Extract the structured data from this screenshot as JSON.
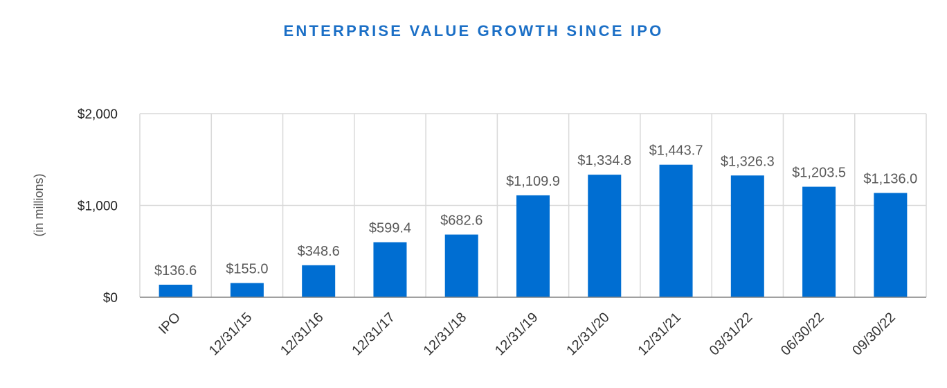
{
  "chart_data": {
    "type": "bar",
    "title": "ENTERPRISE VALUE GROWTH SINCE IPO",
    "ylabel": "(in millions)",
    "xlabel": "",
    "categories": [
      "IPO",
      "12/31/15",
      "12/31/16",
      "12/31/17",
      "12/31/18",
      "12/31/19",
      "12/31/20",
      "12/31/21",
      "03/31/22",
      "06/30/22",
      "09/30/22"
    ],
    "values": [
      136.6,
      155.0,
      348.6,
      599.4,
      682.6,
      1109.9,
      1334.8,
      1443.7,
      1326.3,
      1203.5,
      1136.0
    ],
    "data_labels": [
      "$136.6",
      "$155.0",
      "$348.6",
      "$599.4",
      "$682.6",
      "$1,109.9",
      "$1,334.8",
      "$1,443.7",
      "$1,326.3",
      "$1,203.5",
      "$1,136.0"
    ],
    "ylim": [
      0,
      2000
    ],
    "yticks": [
      0,
      1000,
      2000
    ],
    "ytick_labels": [
      "$0",
      "$1,000",
      "$2,000"
    ],
    "grid": true,
    "legend": "none",
    "colors": {
      "bar": "#006ED2",
      "title": "#1B6FC6",
      "grid": "#D9D9D9",
      "axis": "#808080"
    }
  }
}
